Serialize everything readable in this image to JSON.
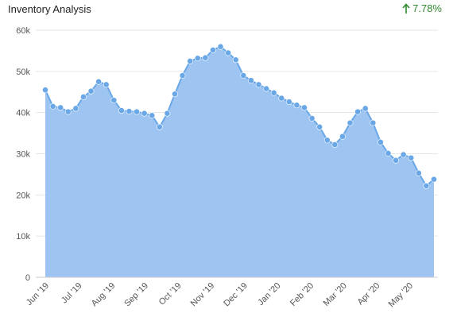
{
  "header": {
    "title": "Inventory Analysis",
    "change_value": "7.78%",
    "change_icon": "arrow-up-icon",
    "change_color": "#2f8a2f"
  },
  "chart_data": {
    "type": "area",
    "title": "Inventory Analysis",
    "xlabel": "",
    "ylabel": "",
    "ylim": [
      0,
      60000
    ],
    "yticks": [
      0,
      10000,
      20000,
      30000,
      40000,
      50000,
      60000
    ],
    "ytick_labels": [
      "0",
      "10k",
      "20k",
      "30k",
      "40k",
      "50k",
      "60k"
    ],
    "xtick_labels": [
      "Jun '19",
      "Jul '19",
      "Aug '19",
      "Sep '19",
      "Oct '19",
      "Nov '19",
      "Dec '19",
      "Jan '20",
      "Feb '20",
      "Mar '20",
      "Apr '20",
      "May '20"
    ],
    "grid": true,
    "fill_color": "#9ec5f2",
    "line_color": "#6aa7e6",
    "series": [
      {
        "values": [
          45500,
          41500,
          41200,
          40200,
          41000,
          43800,
          45200,
          47500,
          46800,
          43000,
          40500,
          40300,
          40200,
          39800,
          39300,
          36500,
          39800,
          44500,
          49000,
          52500,
          53200,
          53300,
          55200,
          56000,
          54500,
          52800,
          49000,
          47800,
          46800,
          45800,
          44800,
          43500,
          42600,
          41800,
          41200,
          38600,
          36500,
          33300,
          32200,
          34200,
          37500,
          40200,
          41000,
          37500,
          32800,
          30100,
          28400,
          29800,
          29000,
          25300,
          22200,
          23800
        ]
      }
    ]
  }
}
